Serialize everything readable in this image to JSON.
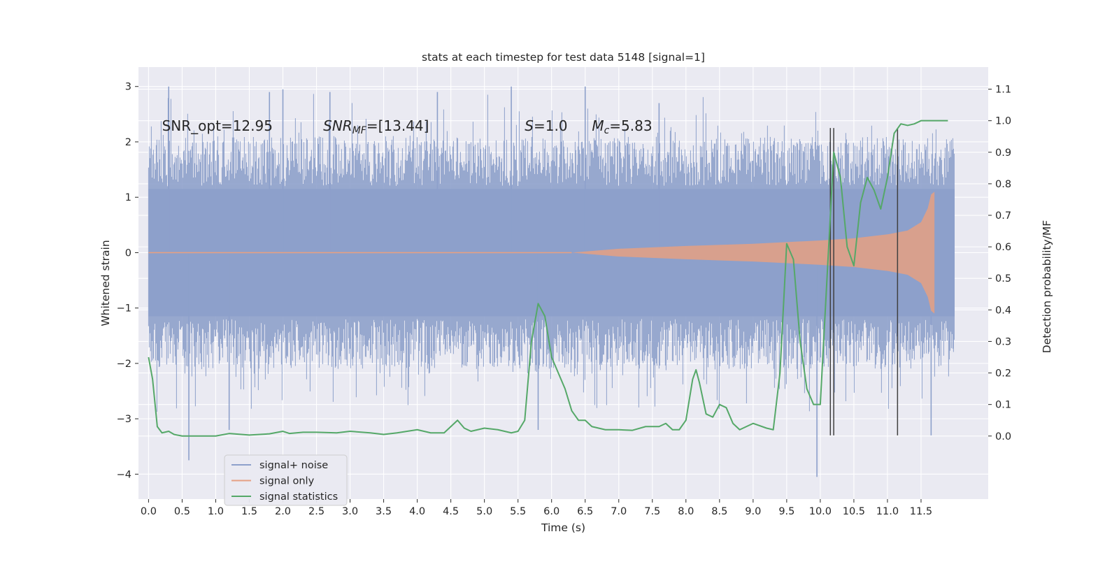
{
  "chart_data": {
    "type": "line",
    "title": "stats at each timestep for test data 5148 [signal=1]",
    "xlabel": "Time (s)",
    "ylabel": "Whitened strain",
    "ylabel_right": "Detection probability/MF",
    "xlim": [
      -0.15,
      12.5
    ],
    "ylim": [
      -4.45,
      3.35
    ],
    "ylim_right": [
      -0.2,
      1.17
    ],
    "x_ticks": [
      0.0,
      0.5,
      1.0,
      1.5,
      2.0,
      2.5,
      3.0,
      3.5,
      4.0,
      4.5,
      5.0,
      5.5,
      6.0,
      6.5,
      7.0,
      7.5,
      8.0,
      8.5,
      9.0,
      9.5,
      10.0,
      10.5,
      11.0,
      11.5
    ],
    "x_tick_labels": [
      "0.0",
      "0.5",
      "1.0",
      "1.5",
      "2.0",
      "2.5",
      "3.0",
      "3.5",
      "4.0",
      "4.5",
      "5.0",
      "5.5",
      "6.0",
      "6.5",
      "7.0",
      "7.5",
      "8.0",
      "8.5",
      "9.0",
      "9.5",
      "10.0",
      "10.5",
      "11.0",
      "11.5"
    ],
    "y_ticks": [
      -4,
      -3,
      -2,
      -1,
      0,
      1,
      2,
      3
    ],
    "y_tick_labels": [
      "−4",
      "−3",
      "−2",
      "−1",
      "0",
      "1",
      "2",
      "3"
    ],
    "y_ticks_right": [
      0.0,
      0.1,
      0.2,
      0.3,
      0.4,
      0.5,
      0.6,
      0.7,
      0.8,
      0.9,
      1.0,
      1.1
    ],
    "y_tick_labels_right": [
      "0.0",
      "0.1",
      "0.2",
      "0.3",
      "0.4",
      "0.5",
      "0.6",
      "0.7",
      "0.8",
      "0.9",
      "1.0",
      "1.1"
    ],
    "grid": true,
    "legend_position": "lower-left",
    "annotations": [
      {
        "id": "snr-opt",
        "text": "SNR_opt=12.95",
        "x": 0.2
      },
      {
        "id": "snr-mf",
        "text": "SNR_MF=[13.44]",
        "x": 2.6
      },
      {
        "id": "s",
        "text": "S=1.0",
        "x": 5.6
      },
      {
        "id": "mc",
        "text": "M_c=5.83",
        "x": 6.6
      }
    ],
    "annotation_y": 2.2,
    "series": [
      {
        "name": "signal+ noise",
        "color": "#8da0cb",
        "x_range": [
          0.0,
          12.0
        ],
        "envelope_typical": 1.6,
        "peaks": [
          {
            "x": 0.3,
            "y": 3.0
          },
          {
            "x": 0.6,
            "y": -3.75
          },
          {
            "x": 1.2,
            "y": -3.2
          },
          {
            "x": 1.8,
            "y": 2.9
          },
          {
            "x": 2.0,
            "y": 2.95
          },
          {
            "x": 2.7,
            "y": 2.9
          },
          {
            "x": 4.3,
            "y": 2.9
          },
          {
            "x": 5.4,
            "y": 3.0
          },
          {
            "x": 5.8,
            "y": -3.2
          },
          {
            "x": 6.5,
            "y": 3.0
          },
          {
            "x": 7.6,
            "y": 2.7
          },
          {
            "x": 9.95,
            "y": -4.05
          },
          {
            "x": 11.65,
            "y": -3.3
          }
        ]
      },
      {
        "name": "signal only",
        "color": "#e5a083",
        "onset": 6.3,
        "x_end": 11.7,
        "envelope": [
          {
            "x": 6.3,
            "y": 0.0
          },
          {
            "x": 7.0,
            "y": 0.07
          },
          {
            "x": 8.0,
            "y": 0.12
          },
          {
            "x": 9.0,
            "y": 0.16
          },
          {
            "x": 10.0,
            "y": 0.22
          },
          {
            "x": 10.5,
            "y": 0.26
          },
          {
            "x": 11.0,
            "y": 0.33
          },
          {
            "x": 11.3,
            "y": 0.4
          },
          {
            "x": 11.5,
            "y": 0.55
          },
          {
            "x": 11.6,
            "y": 0.8
          },
          {
            "x": 11.65,
            "y": 1.05
          },
          {
            "x": 11.7,
            "y": 1.1
          }
        ]
      },
      {
        "name": "signal statistics",
        "color": "#55a868",
        "axis": "right",
        "points": [
          [
            0.0,
            0.25
          ],
          [
            0.06,
            0.18
          ],
          [
            0.13,
            0.03
          ],
          [
            0.2,
            0.01
          ],
          [
            0.3,
            0.015
          ],
          [
            0.38,
            0.005
          ],
          [
            0.5,
            0.0
          ],
          [
            0.7,
            0.0
          ],
          [
            0.9,
            0.0
          ],
          [
            1.0,
            0.0
          ],
          [
            1.2,
            0.008
          ],
          [
            1.5,
            0.003
          ],
          [
            1.8,
            0.007
          ],
          [
            2.0,
            0.015
          ],
          [
            2.1,
            0.008
          ],
          [
            2.3,
            0.012
          ],
          [
            2.5,
            0.012
          ],
          [
            2.8,
            0.01
          ],
          [
            3.0,
            0.015
          ],
          [
            3.3,
            0.01
          ],
          [
            3.5,
            0.005
          ],
          [
            3.7,
            0.01
          ],
          [
            4.0,
            0.02
          ],
          [
            4.2,
            0.01
          ],
          [
            4.4,
            0.01
          ],
          [
            4.5,
            0.03
          ],
          [
            4.6,
            0.05
          ],
          [
            4.7,
            0.025
          ],
          [
            4.8,
            0.015
          ],
          [
            5.0,
            0.025
          ],
          [
            5.2,
            0.02
          ],
          [
            5.4,
            0.01
          ],
          [
            5.5,
            0.015
          ],
          [
            5.6,
            0.05
          ],
          [
            5.7,
            0.3
          ],
          [
            5.8,
            0.42
          ],
          [
            5.9,
            0.38
          ],
          [
            6.0,
            0.25
          ],
          [
            6.2,
            0.15
          ],
          [
            6.3,
            0.08
          ],
          [
            6.4,
            0.05
          ],
          [
            6.5,
            0.05
          ],
          [
            6.6,
            0.03
          ],
          [
            6.8,
            0.02
          ],
          [
            7.0,
            0.02
          ],
          [
            7.2,
            0.018
          ],
          [
            7.4,
            0.03
          ],
          [
            7.6,
            0.03
          ],
          [
            7.7,
            0.04
          ],
          [
            7.8,
            0.02
          ],
          [
            7.9,
            0.02
          ],
          [
            8.0,
            0.05
          ],
          [
            8.1,
            0.18
          ],
          [
            8.15,
            0.21
          ],
          [
            8.2,
            0.17
          ],
          [
            8.3,
            0.07
          ],
          [
            8.4,
            0.06
          ],
          [
            8.5,
            0.1
          ],
          [
            8.6,
            0.09
          ],
          [
            8.7,
            0.04
          ],
          [
            8.8,
            0.02
          ],
          [
            9.0,
            0.04
          ],
          [
            9.2,
            0.025
          ],
          [
            9.3,
            0.02
          ],
          [
            9.4,
            0.2
          ],
          [
            9.5,
            0.61
          ],
          [
            9.6,
            0.56
          ],
          [
            9.7,
            0.3
          ],
          [
            9.8,
            0.15
          ],
          [
            9.9,
            0.1
          ],
          [
            10.0,
            0.1
          ],
          [
            10.1,
            0.5
          ],
          [
            10.2,
            0.9
          ],
          [
            10.3,
            0.82
          ],
          [
            10.4,
            0.6
          ],
          [
            10.5,
            0.54
          ],
          [
            10.6,
            0.74
          ],
          [
            10.7,
            0.82
          ],
          [
            10.8,
            0.78
          ],
          [
            10.9,
            0.72
          ],
          [
            11.0,
            0.82
          ],
          [
            11.1,
            0.96
          ],
          [
            11.2,
            0.99
          ],
          [
            11.3,
            0.985
          ],
          [
            11.4,
            0.99
          ],
          [
            11.5,
            1.0
          ],
          [
            11.6,
            1.0
          ],
          [
            11.7,
            1.0
          ],
          [
            11.8,
            1.0
          ],
          [
            11.9,
            1.0
          ]
        ]
      }
    ],
    "vertical_markers": [
      {
        "x": 10.15,
        "top": 2.25,
        "bottom": -3.3,
        "color": "#404040"
      },
      {
        "x": 10.2,
        "top": 2.25,
        "bottom": -3.3,
        "color": "#404040"
      },
      {
        "x": 11.15,
        "top": 2.25,
        "bottom": -3.3,
        "color": "#404040"
      }
    ],
    "legend": [
      {
        "label": "signal+ noise",
        "color": "#8da0cb"
      },
      {
        "label": "signal only",
        "color": "#e5a083"
      },
      {
        "label": "signal statistics",
        "color": "#55a868"
      }
    ],
    "plot_background": "#eaeaf2",
    "grid_color": "#ffffff"
  }
}
